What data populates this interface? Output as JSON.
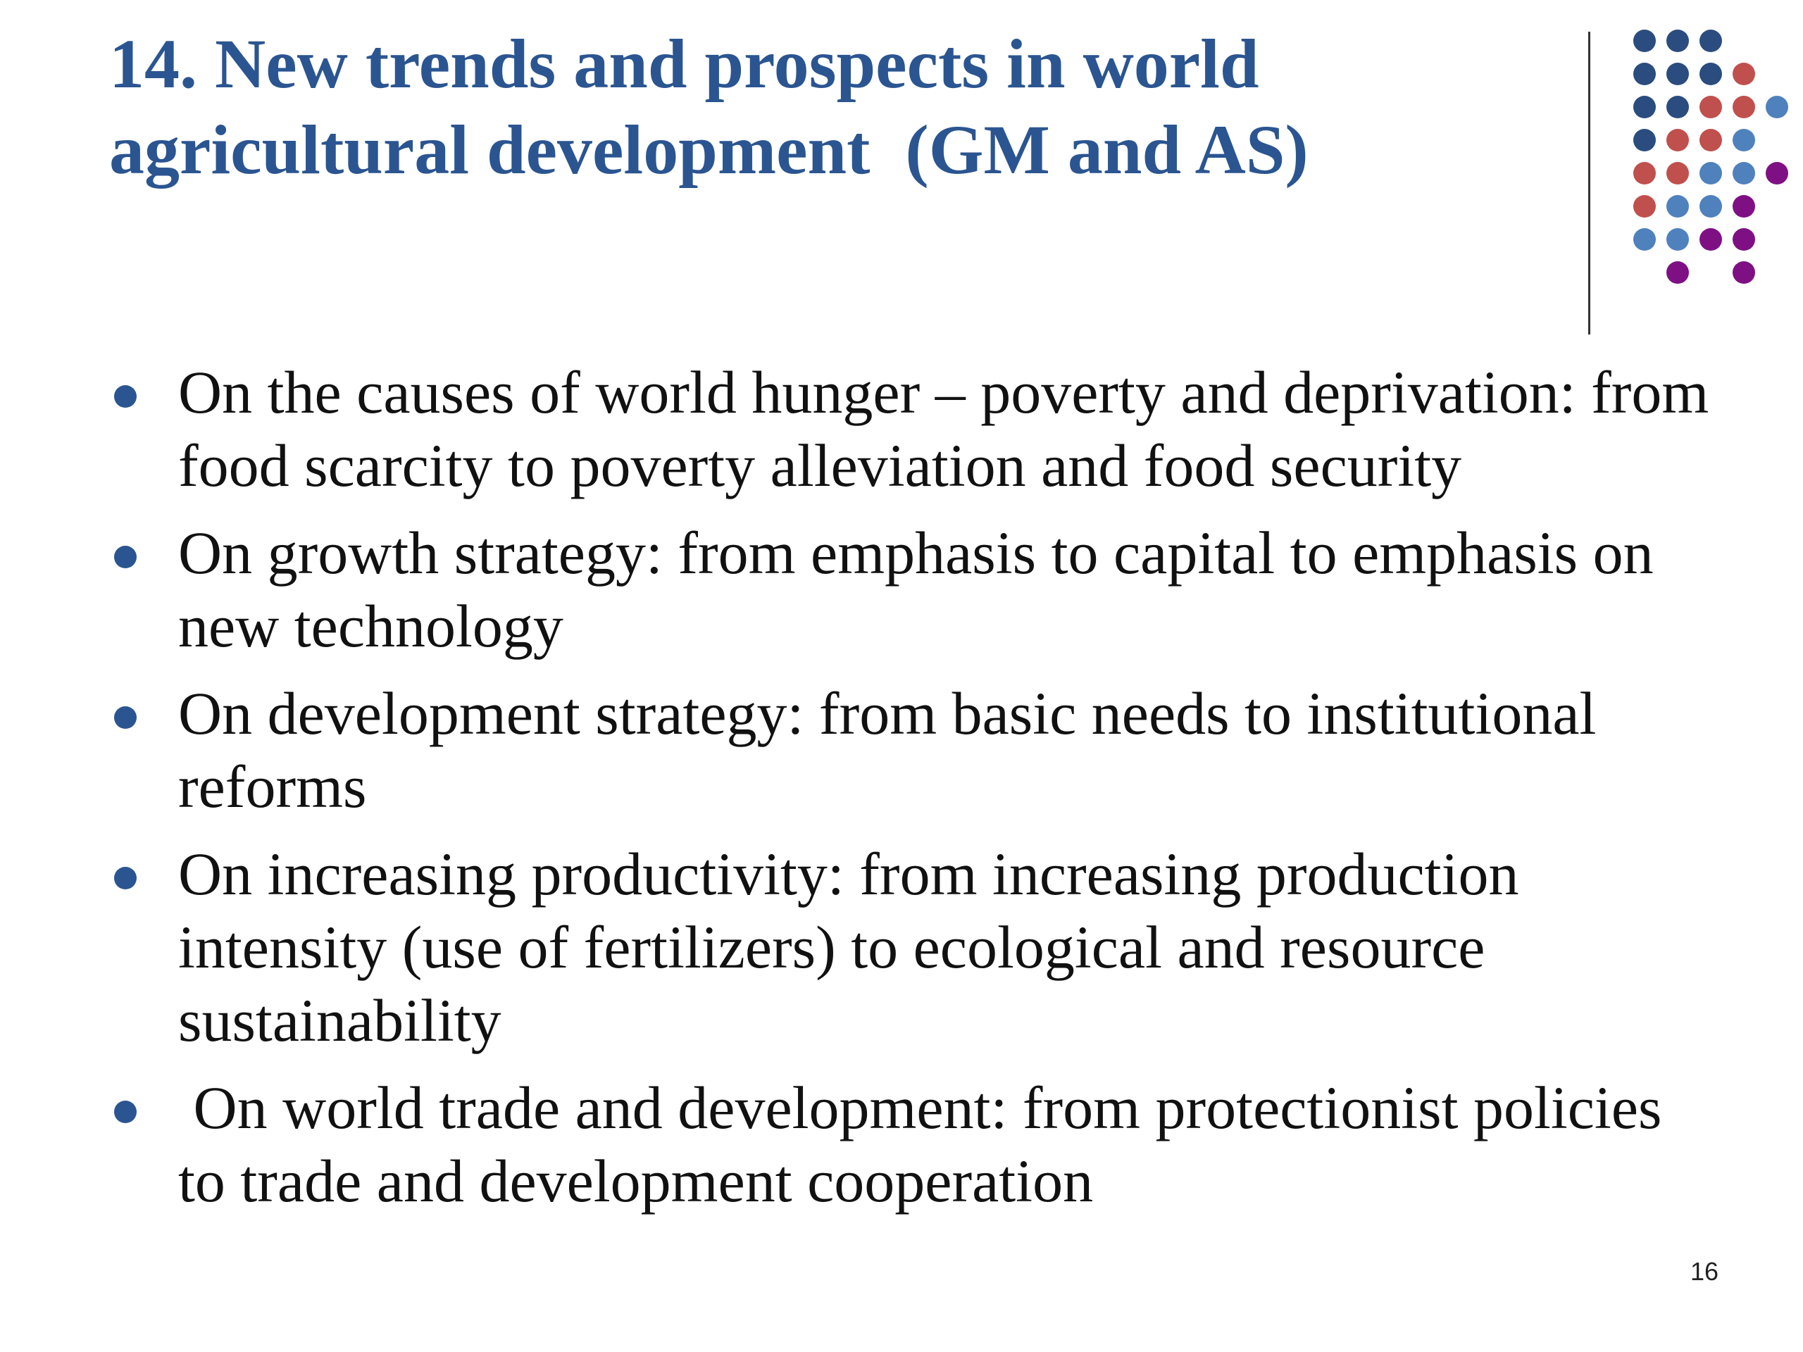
{
  "slide": {
    "title_lines": [
      "14. New trends and prospects in world",
      "agricultural development  (GM and AS)"
    ],
    "bullets": [
      {
        "lines": [
          "On the causes of world hunger – poverty and deprivation: from",
          "food scarcity to poverty alleviation and food security"
        ]
      },
      {
        "lines": [
          "On growth strategy: from emphasis to capital to emphasis on",
          "new technology"
        ]
      },
      {
        "lines": [
          "On development strategy: from basic needs to institutional",
          "reforms"
        ]
      },
      {
        "lines": [
          "On increasing productivity: from increasing production",
          "intensity (use of fertilizers) to ecological and resource",
          "sustainability"
        ]
      },
      {
        "lines": [
          " On world trade and development: from protectionist policies",
          "to trade and development cooperation"
        ]
      }
    ],
    "page_number": "16"
  },
  "decoration": {
    "dot_rows": [
      [
        "navy",
        "navy",
        "navy",
        "",
        ""
      ],
      [
        "navy",
        "navy",
        "navy",
        "red",
        ""
      ],
      [
        "navy",
        "navy",
        "red",
        "red",
        "blue"
      ],
      [
        "navy",
        "red",
        "red",
        "blue",
        ""
      ],
      [
        "red",
        "red",
        "blue",
        "blue",
        "purple"
      ],
      [
        "red",
        "blue",
        "blue",
        "purple",
        ""
      ],
      [
        "blue",
        "blue",
        "purple",
        "purple",
        ""
      ],
      [
        "",
        "purple",
        "",
        "purple",
        ""
      ]
    ]
  },
  "colors": {
    "title": "#2b5591",
    "bullet": "#2b5591",
    "body_text": "#111111",
    "navy": "#2b4c7e",
    "red": "#c0504d",
    "blue": "#4f81bd",
    "purple": "#7f1084"
  }
}
